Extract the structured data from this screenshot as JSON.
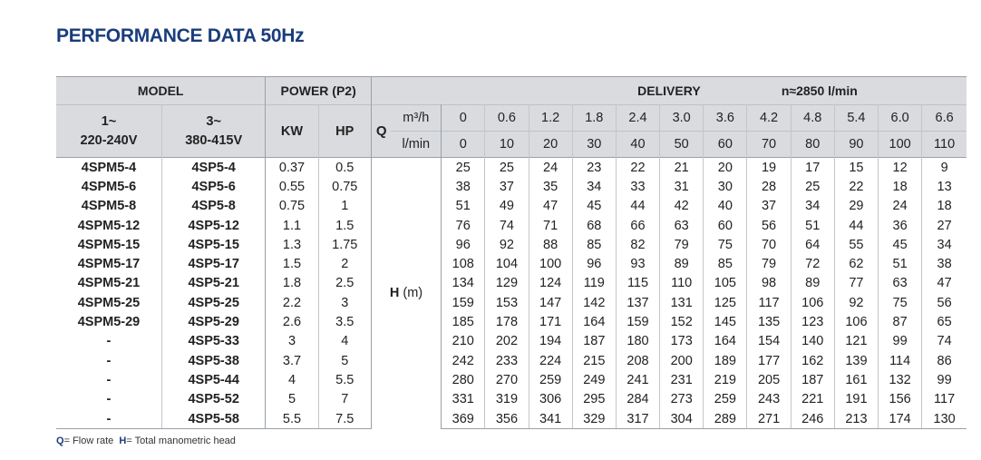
{
  "title": "PERFORMANCE DATA 50Hz",
  "header": {
    "model": "MODEL",
    "power": "POWER (P2)",
    "delivery": "DELIVERY",
    "speed": "n≈2850 l/min",
    "single_phase": "1~",
    "single_voltage": "220-240V",
    "three_phase": "3~",
    "three_voltage": "380-415V",
    "kw": "KW",
    "hp": "HP",
    "q": "Q",
    "unit_m3h": "m³/h",
    "unit_lmin": "l/min",
    "h_label": "H",
    "h_unit": "(m)"
  },
  "flow_m3h": [
    "0",
    "0.6",
    "1.2",
    "1.8",
    "2.4",
    "3.0",
    "3.6",
    "4.2",
    "4.8",
    "5.4",
    "6.0",
    "6.6"
  ],
  "flow_lmin": [
    "0",
    "10",
    "20",
    "30",
    "40",
    "50",
    "60",
    "70",
    "80",
    "90",
    "100",
    "110"
  ],
  "rows": [
    {
      "m1": "4SPM5-4",
      "m3": "4SP5-4",
      "kw": "0.37",
      "hp": "0.5",
      "h": [
        "25",
        "25",
        "24",
        "23",
        "22",
        "21",
        "20",
        "19",
        "17",
        "15",
        "12",
        "9"
      ]
    },
    {
      "m1": "4SPM5-6",
      "m3": "4SP5-6",
      "kw": "0.55",
      "hp": "0.75",
      "h": [
        "38",
        "37",
        "35",
        "34",
        "33",
        "31",
        "30",
        "28",
        "25",
        "22",
        "18",
        "13"
      ]
    },
    {
      "m1": "4SPM5-8",
      "m3": "4SP5-8",
      "kw": "0.75",
      "hp": "1",
      "h": [
        "51",
        "49",
        "47",
        "45",
        "44",
        "42",
        "40",
        "37",
        "34",
        "29",
        "24",
        "18"
      ]
    },
    {
      "m1": "4SPM5-12",
      "m3": "4SP5-12",
      "kw": "1.1",
      "hp": "1.5",
      "h": [
        "76",
        "74",
        "71",
        "68",
        "66",
        "63",
        "60",
        "56",
        "51",
        "44",
        "36",
        "27"
      ]
    },
    {
      "m1": "4SPM5-15",
      "m3": "4SP5-15",
      "kw": "1.3",
      "hp": "1.75",
      "h": [
        "96",
        "92",
        "88",
        "85",
        "82",
        "79",
        "75",
        "70",
        "64",
        "55",
        "45",
        "34"
      ]
    },
    {
      "m1": "4SPM5-17",
      "m3": "4SP5-17",
      "kw": "1.5",
      "hp": "2",
      "h": [
        "108",
        "104",
        "100",
        "96",
        "93",
        "89",
        "85",
        "79",
        "72",
        "62",
        "51",
        "38"
      ]
    },
    {
      "m1": "4SPM5-21",
      "m3": "4SP5-21",
      "kw": "1.8",
      "hp": "2.5",
      "h": [
        "134",
        "129",
        "124",
        "119",
        "115",
        "110",
        "105",
        "98",
        "89",
        "77",
        "63",
        "47"
      ]
    },
    {
      "m1": "4SPM5-25",
      "m3": "4SP5-25",
      "kw": "2.2",
      "hp": "3",
      "h": [
        "159",
        "153",
        "147",
        "142",
        "137",
        "131",
        "125",
        "117",
        "106",
        "92",
        "75",
        "56"
      ]
    },
    {
      "m1": "4SPM5-29",
      "m3": "4SP5-29",
      "kw": "2.6",
      "hp": "3.5",
      "h": [
        "185",
        "178",
        "171",
        "164",
        "159",
        "152",
        "145",
        "135",
        "123",
        "106",
        "87",
        "65"
      ]
    },
    {
      "m1": "-",
      "m3": "4SP5-33",
      "kw": "3",
      "hp": "4",
      "h": [
        "210",
        "202",
        "194",
        "187",
        "180",
        "173",
        "164",
        "154",
        "140",
        "121",
        "99",
        "74"
      ]
    },
    {
      "m1": "-",
      "m3": "4SP5-38",
      "kw": "3.7",
      "hp": "5",
      "h": [
        "242",
        "233",
        "224",
        "215",
        "208",
        "200",
        "189",
        "177",
        "162",
        "139",
        "114",
        "86"
      ]
    },
    {
      "m1": "-",
      "m3": "4SP5-44",
      "kw": "4",
      "hp": "5.5",
      "h": [
        "280",
        "270",
        "259",
        "249",
        "241",
        "231",
        "219",
        "205",
        "187",
        "161",
        "132",
        "99"
      ]
    },
    {
      "m1": "-",
      "m3": "4SP5-52",
      "kw": "5",
      "hp": "7",
      "h": [
        "331",
        "319",
        "306",
        "295",
        "284",
        "273",
        "259",
        "243",
        "221",
        "191",
        "156",
        "117"
      ]
    },
    {
      "m1": "-",
      "m3": "4SP5-58",
      "kw": "5.5",
      "hp": "7.5",
      "h": [
        "369",
        "356",
        "341",
        "329",
        "317",
        "304",
        "289",
        "271",
        "246",
        "213",
        "174",
        "130"
      ]
    }
  ],
  "legend": {
    "q_key": "Q",
    "q_text": "= Flow rate",
    "h_key": "H",
    "h_text": "= Total manometric head"
  },
  "colors": {
    "title": "#1a3d7c",
    "header_bg": "#d9dbde",
    "rule": "#9aa0a6"
  }
}
